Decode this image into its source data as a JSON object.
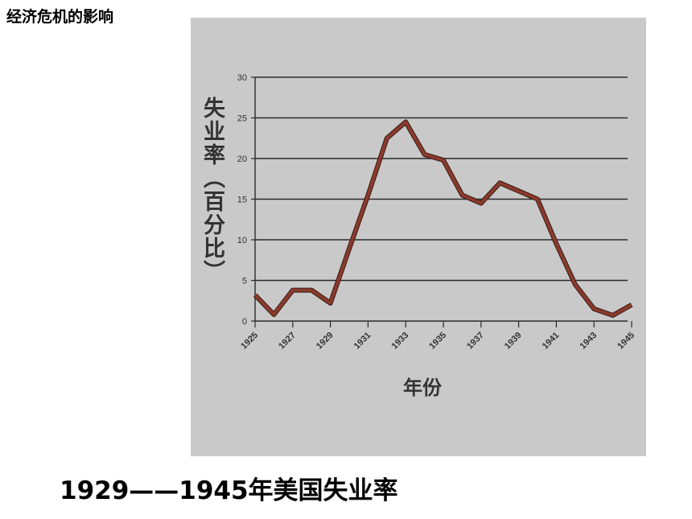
{
  "header": {
    "title": "经济危机的影响"
  },
  "caption": "1929——1945年美国失业率",
  "chart_data": {
    "type": "line",
    "x_label": "年份",
    "y_label": "失业率（百分比）",
    "x": [
      1925,
      1926,
      1927,
      1928,
      1929,
      1930,
      1931,
      1932,
      1933,
      1934,
      1935,
      1936,
      1937,
      1938,
      1939,
      1940,
      1941,
      1942,
      1943,
      1944,
      1945
    ],
    "values": [
      3.2,
      0.8,
      3.8,
      3.8,
      2.2,
      8.9,
      15.5,
      22.5,
      24.5,
      20.5,
      19.8,
      15.5,
      14.5,
      17.0,
      16.0,
      15.0,
      9.5,
      4.5,
      1.5,
      0.7,
      2.0
    ],
    "color": "#8a3a2c",
    "xlim": [
      1925,
      1945
    ],
    "xticks": [
      1925,
      1927,
      1929,
      1931,
      1933,
      1935,
      1937,
      1939,
      1941,
      1943,
      1945
    ],
    "ylim": [
      0,
      30
    ],
    "yticks": [
      0,
      5,
      10,
      15,
      20,
      25,
      30
    ],
    "grid": true
  }
}
